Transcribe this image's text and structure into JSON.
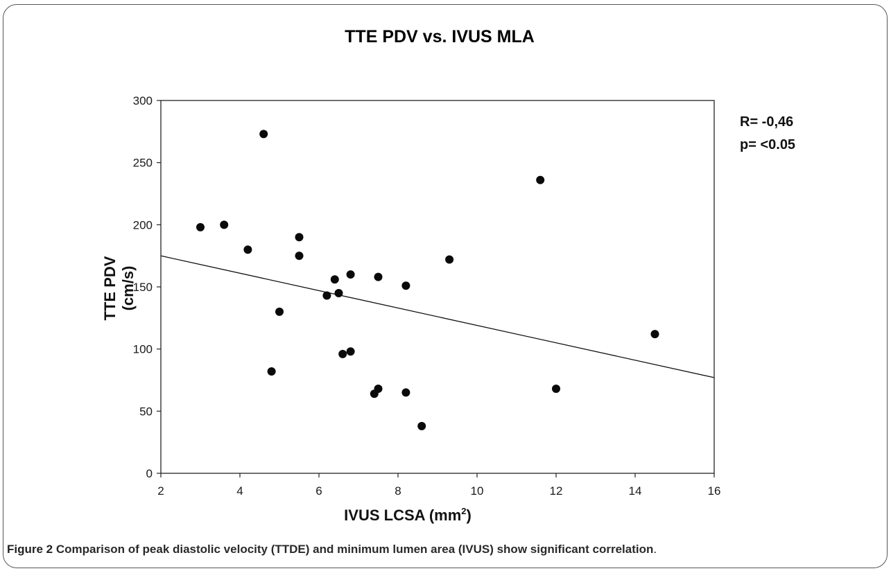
{
  "caption": {
    "label": "Figure 2",
    "text": "Comparison of peak diastolic velocity (TTDE) and minimum lumen area (IVUS) show significant correlation",
    "end": "."
  },
  "chart_data": {
    "type": "scatter",
    "title": "TTE PDV vs. IVUS MLA",
    "xlabel_main": "IVUS LCSA (mm",
    "xlabel_sup": "2",
    "xlabel_end": ")",
    "ylabel_line1": "TTE PDV",
    "ylabel_line2": "(cm/s)",
    "xlim": [
      2,
      16
    ],
    "ylim": [
      0,
      300
    ],
    "xticks": [
      2,
      4,
      6,
      8,
      10,
      12,
      14,
      16
    ],
    "yticks": [
      0,
      50,
      100,
      150,
      200,
      250,
      300
    ],
    "grid": false,
    "points": [
      {
        "x": 3.0,
        "y": 198
      },
      {
        "x": 3.6,
        "y": 200
      },
      {
        "x": 4.2,
        "y": 180
      },
      {
        "x": 4.6,
        "y": 273
      },
      {
        "x": 4.8,
        "y": 82
      },
      {
        "x": 5.0,
        "y": 130
      },
      {
        "x": 5.5,
        "y": 190
      },
      {
        "x": 5.5,
        "y": 175
      },
      {
        "x": 6.2,
        "y": 143
      },
      {
        "x": 6.4,
        "y": 156
      },
      {
        "x": 6.5,
        "y": 145
      },
      {
        "x": 6.6,
        "y": 96
      },
      {
        "x": 6.8,
        "y": 98
      },
      {
        "x": 6.8,
        "y": 160
      },
      {
        "x": 7.4,
        "y": 64
      },
      {
        "x": 7.5,
        "y": 68
      },
      {
        "x": 7.5,
        "y": 158
      },
      {
        "x": 8.2,
        "y": 151
      },
      {
        "x": 8.2,
        "y": 65
      },
      {
        "x": 8.6,
        "y": 38
      },
      {
        "x": 9.3,
        "y": 172
      },
      {
        "x": 11.6,
        "y": 236
      },
      {
        "x": 12.0,
        "y": 68
      },
      {
        "x": 14.5,
        "y": 112
      }
    ],
    "trendline": {
      "x": [
        2,
        16
      ],
      "y": [
        175,
        77
      ]
    },
    "annotations": [
      "R= -0,46",
      "p= <0.05"
    ]
  }
}
